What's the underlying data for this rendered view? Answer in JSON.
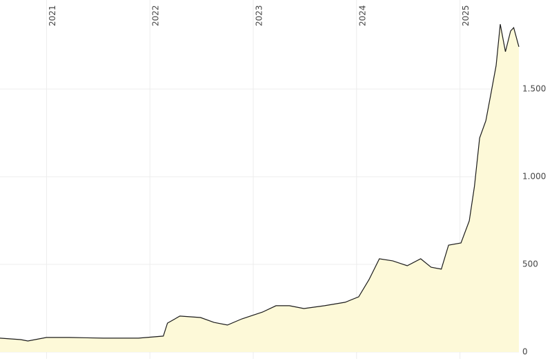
{
  "chart_data": {
    "type": "area",
    "x": [
      2020.55,
      2020.75,
      2020.82,
      2021.0,
      2021.22,
      2021.55,
      2021.89,
      2022.13,
      2022.17,
      2022.29,
      2022.49,
      2022.62,
      2022.75,
      2022.89,
      2023.09,
      2023.22,
      2023.35,
      2023.49,
      2023.69,
      2023.89,
      2024.02,
      2024.12,
      2024.22,
      2024.35,
      2024.49,
      2024.62,
      2024.72,
      2024.82,
      2024.89,
      2025.01,
      2025.09,
      2025.14,
      2025.19,
      2025.25,
      2025.3,
      2025.35,
      2025.39,
      2025.44,
      2025.49,
      2025.52,
      2025.57
    ],
    "values": [
      79,
      71,
      63,
      83,
      83,
      79,
      79,
      91,
      165,
      205,
      197,
      169,
      154,
      189,
      228,
      264,
      264,
      248,
      264,
      284,
      315,
      413,
      532,
      520,
      492,
      532,
      484,
      473,
      610,
      622,
      748,
      945,
      1221,
      1319,
      1476,
      1634,
      1870,
      1713,
      1831,
      1850,
      1741
    ],
    "color": "#1a1a1a",
    "fill": "#fdf9d8",
    "xlim": [
      2020.55,
      2025.57
    ],
    "xticks": [
      2021,
      2022,
      2023,
      2024,
      2025
    ],
    "ylim": [
      0,
      2000
    ],
    "yticks": [
      0,
      500,
      {
        "value": 1000,
        "label": "1.000"
      },
      {
        "value": 1500,
        "label": "1.500"
      }
    ],
    "grid": true
  }
}
